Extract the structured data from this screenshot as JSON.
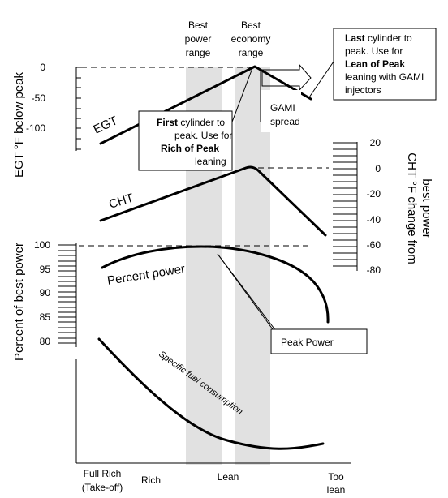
{
  "bands": {
    "power": {
      "label_lines": [
        "Best",
        "power",
        "range"
      ]
    },
    "economy": {
      "label_lines": [
        "Best",
        "economy",
        "range"
      ]
    }
  },
  "egt": {
    "axis_label": "EGT °F below peak",
    "ticks": [
      "0",
      "-50",
      "-100"
    ],
    "curve_label": "EGT"
  },
  "cht": {
    "axis_label_lines": [
      "CHT °F change from",
      "best power"
    ],
    "ticks": [
      "20",
      "0",
      "-20",
      "-40",
      "-60",
      "-80"
    ],
    "curve_label": "CHT"
  },
  "power": {
    "axis_label": "Percent of best power",
    "ticks": [
      "100",
      "95",
      "90",
      "85",
      "80"
    ],
    "curve_label": "Percent power"
  },
  "sfc": {
    "curve_label": "Specific fuel consumption"
  },
  "callouts": {
    "first": {
      "bold1": "First",
      "rest1": " cylinder to",
      "line2": "peak. Use for",
      "bold3": "Rich of Peak",
      "line4": "leaning"
    },
    "last": {
      "bold1": "Last",
      "rest1": " cylinder to",
      "line2": "peak. Use for",
      "bold3": "Lean of Peak",
      "line4": "leaning with GAMI",
      "line5": "injectors"
    },
    "gami": {
      "line1": "GAMI",
      "line2": "spread"
    },
    "peak_power": "Peak Power"
  },
  "x_axis": {
    "full_rich_lines": [
      "Full Rich",
      "(Take-off)"
    ],
    "rich": "Rich",
    "lean": "Lean",
    "too_lean_lines": [
      "Too",
      "lean"
    ]
  }
}
